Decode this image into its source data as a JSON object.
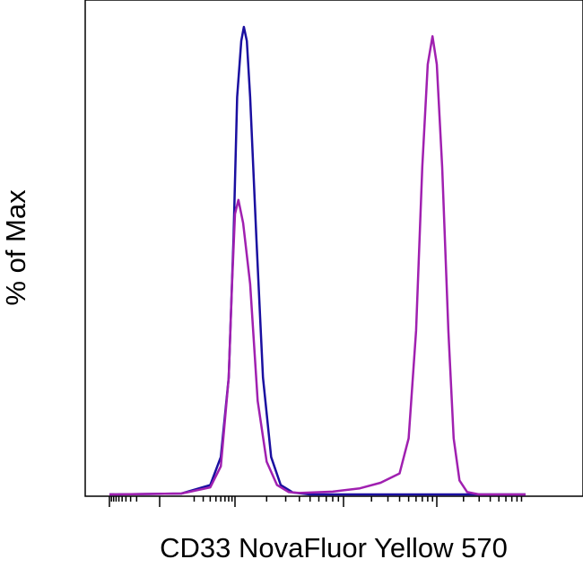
{
  "chart_data": {
    "type": "line",
    "title": "",
    "xlabel": "CD33 NovaFluor Yellow 570",
    "ylabel": "% of Max",
    "x_scale": "log",
    "x_tick_labels_shown": false,
    "y_tick_labels_shown": false,
    "xlim": [
      -1000,
      1000000
    ],
    "ylim": [
      0,
      100
    ],
    "grid": false,
    "legend": "none",
    "series": [
      {
        "color": "#1a0fa0",
        "points": [
          [
            -1000,
            0
          ],
          [
            100,
            0.2
          ],
          [
            400,
            2
          ],
          [
            600,
            8
          ],
          [
            800,
            25
          ],
          [
            950,
            55
          ],
          [
            1050,
            85
          ],
          [
            1150,
            97
          ],
          [
            1220,
            100
          ],
          [
            1300,
            97
          ],
          [
            1400,
            85
          ],
          [
            1600,
            55
          ],
          [
            1850,
            25
          ],
          [
            2200,
            8
          ],
          [
            2700,
            2
          ],
          [
            3500,
            0.4
          ],
          [
            5000,
            0
          ],
          [
            1000000,
            0
          ]
        ]
      },
      {
        "color": "#a020b0",
        "points": [
          [
            -1000,
            0
          ],
          [
            100,
            0.2
          ],
          [
            400,
            1.5
          ],
          [
            600,
            6
          ],
          [
            800,
            25
          ],
          [
            900,
            45
          ],
          [
            1000,
            60
          ],
          [
            1080,
            63
          ],
          [
            1200,
            58
          ],
          [
            1400,
            45
          ],
          [
            1650,
            20
          ],
          [
            2000,
            7
          ],
          [
            2500,
            2
          ],
          [
            3200,
            0.5
          ],
          [
            4000,
            0.3
          ],
          [
            8000,
            0.6
          ],
          [
            15000,
            1.3
          ],
          [
            25000,
            2.5
          ],
          [
            40000,
            4.5
          ],
          [
            50000,
            12
          ],
          [
            60000,
            35
          ],
          [
            70000,
            70
          ],
          [
            80000,
            92
          ],
          [
            90000,
            98
          ],
          [
            100000,
            92
          ],
          [
            115000,
            70
          ],
          [
            135000,
            35
          ],
          [
            155000,
            12
          ],
          [
            180000,
            3
          ],
          [
            220000,
            0.5
          ],
          [
            300000,
            0
          ],
          [
            1000000,
            0
          ]
        ]
      }
    ]
  }
}
